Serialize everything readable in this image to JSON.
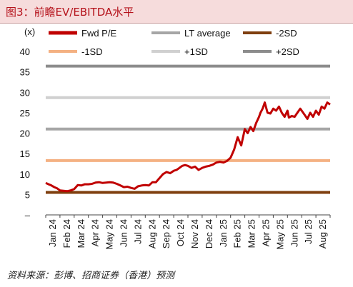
{
  "title": "图3：前瞻EV/EBITDA水平",
  "source": "资料来源：彭博、招商证券（香港）预测",
  "chart_data": {
    "type": "line",
    "y_unit_label": "(x)",
    "ylim": [
      0,
      40
    ],
    "y_ticks": [
      {
        "value": 40,
        "label": "40"
      },
      {
        "value": 35,
        "label": "35"
      },
      {
        "value": 30,
        "label": "30"
      },
      {
        "value": 25,
        "label": "25"
      },
      {
        "value": 20,
        "label": "20"
      },
      {
        "value": 15,
        "label": "15"
      },
      {
        "value": 10,
        "label": "10"
      },
      {
        "value": 5,
        "label": "5"
      },
      {
        "value": 0,
        "label": "–"
      }
    ],
    "x_labels": [
      "Jan 24",
      "Feb 24",
      "Mar 24",
      "Apr 24",
      "May 24",
      "Jun 24",
      "Jul 24",
      "Aug 24",
      "Sep 24",
      "Oct 24",
      "Nov 24",
      "Dec 24",
      "Jan 25",
      "Feb 25",
      "Mar 25",
      "Apr 25",
      "May 25",
      "Jun 25",
      "Jul 25",
      "Aug 25"
    ],
    "grid": false,
    "legend": [
      {
        "name": "Fwd P/E",
        "color": "#c00000",
        "width": 4
      },
      {
        "name": "LT average",
        "color": "#a6a6a6",
        "width": 3
      },
      {
        "name": "-2SD",
        "color": "#7f3f0f",
        "width": 3
      },
      {
        "name": "-1SD",
        "color": "#f4b183",
        "width": 3
      },
      {
        "name": "+1SD",
        "color": "#d0d0d0",
        "width": 3
      },
      {
        "name": "+2SD",
        "color": "#8c8c8c",
        "width": 3
      }
    ],
    "series": [
      {
        "name": "Fwd P/E",
        "color": "#c00000",
        "x": [
          0,
          0.2,
          0.4,
          0.6,
          0.8,
          1,
          1.25,
          1.5,
          1.75,
          2,
          2.25,
          2.5,
          2.75,
          3,
          3.25,
          3.5,
          3.75,
          4,
          4.25,
          4.5,
          4.75,
          5,
          5.25,
          5.5,
          5.75,
          6,
          6.25,
          6.5,
          6.75,
          7,
          7.25,
          7.5,
          7.75,
          8,
          8.25,
          8.5,
          8.75,
          9,
          9.2,
          9.4,
          9.6,
          9.8,
          10,
          10.25,
          10.5,
          10.75,
          11,
          11.25,
          11.5,
          11.75,
          12,
          12.25,
          12.5,
          12.75,
          13,
          13.25,
          13.5,
          13.75,
          14,
          14.2,
          14.4,
          14.6,
          14.8,
          15,
          15.1,
          15.25,
          15.4,
          15.6,
          15.8,
          16,
          16.2,
          16.4,
          16.6,
          16.8,
          17,
          17.1,
          17.3,
          17.5,
          17.7,
          17.9,
          18,
          18.2,
          18.4,
          18.6,
          18.8,
          19,
          19.2,
          19.4,
          19.6,
          19.8,
          20
        ],
        "values": [
          7.8,
          7.5,
          7.2,
          6.8,
          6.5,
          6.0,
          5.9,
          5.8,
          6.0,
          6.3,
          7.3,
          7.2,
          7.5,
          7.5,
          7.6,
          7.9,
          8.0,
          7.8,
          7.9,
          8.0,
          7.9,
          7.6,
          7.2,
          6.8,
          6.9,
          6.6,
          6.4,
          7.0,
          7.2,
          7.3,
          7.2,
          8.0,
          8.0,
          9.0,
          10.0,
          10.5,
          10.2,
          10.8,
          11.0,
          11.5,
          12.0,
          12.2,
          12.0,
          11.5,
          11.8,
          11.0,
          11.5,
          11.8,
          12.0,
          12.3,
          12.8,
          13.0,
          12.8,
          13.2,
          14.0,
          16.0,
          19.0,
          17.0,
          21.0,
          20.0,
          21.5,
          20.5,
          22.5,
          24.0,
          25.0,
          26.0,
          27.5,
          25.0,
          24.8,
          26.0,
          25.5,
          26.5,
          25.0,
          24.0,
          25.5,
          23.8,
          24.2,
          24.0,
          25.0,
          26.0,
          25.5,
          24.5,
          23.5,
          25.0,
          24.0,
          25.5,
          24.5,
          26.5,
          26.0,
          27.5,
          27.0
        ]
      },
      {
        "name": "LT average",
        "color": "#a6a6a6",
        "x": [
          0,
          20
        ],
        "values": [
          21.0,
          21.0
        ]
      },
      {
        "name": "-2SD",
        "color": "#7f3f0f",
        "x": [
          0,
          20
        ],
        "values": [
          5.5,
          5.5
        ]
      },
      {
        "name": "-1SD",
        "color": "#f4b183",
        "x": [
          0,
          20
        ],
        "values": [
          13.3,
          13.3
        ]
      },
      {
        "name": "+1SD",
        "color": "#d0d0d0",
        "x": [
          0,
          20
        ],
        "values": [
          28.7,
          28.7
        ]
      },
      {
        "name": "+2SD",
        "color": "#8c8c8c",
        "x": [
          0,
          20
        ],
        "values": [
          36.4,
          36.4
        ]
      }
    ]
  }
}
